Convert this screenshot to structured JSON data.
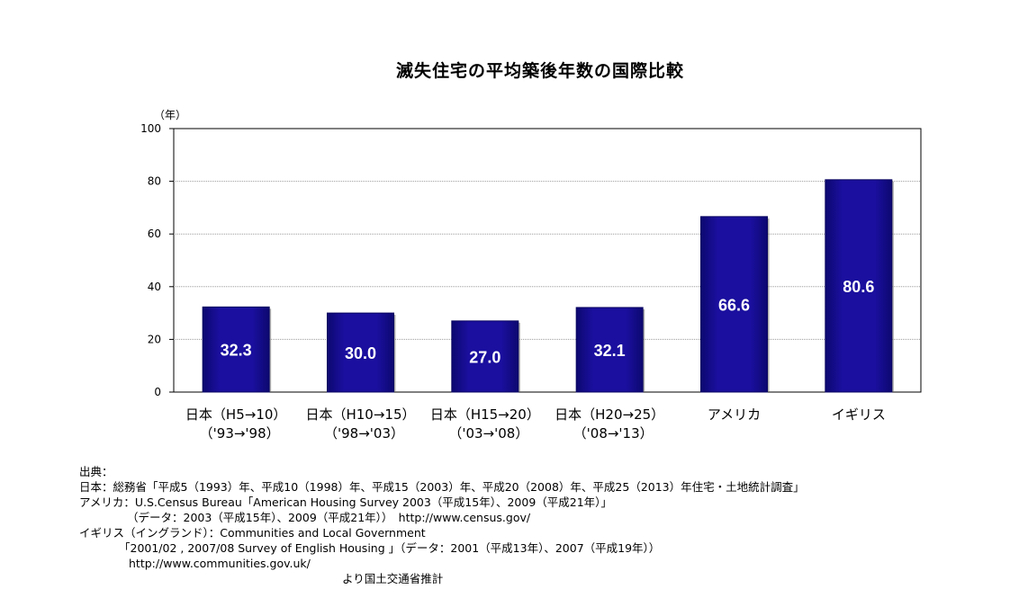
{
  "chart_data": {
    "type": "bar",
    "title": "滅失住宅の平均築後年数の国際比較",
    "yunit": "（年）",
    "ylim": [
      0,
      100
    ],
    "yticks": [
      0,
      20,
      40,
      60,
      80,
      100
    ],
    "grid": true,
    "categories": [
      {
        "label": "日本（H5→10）",
        "sublabel": "（'93→'98）"
      },
      {
        "label": "日本（H10→15）",
        "sublabel": "（'98→'03）"
      },
      {
        "label": "日本（H15→20）",
        "sublabel": "（'03→'08）"
      },
      {
        "label": "日本（H20→25）",
        "sublabel": "（'08→'13）"
      },
      {
        "label": "アメリカ",
        "sublabel": ""
      },
      {
        "label": "イギリス",
        "sublabel": ""
      }
    ],
    "values": [
      32.3,
      30.0,
      27.0,
      32.1,
      66.6,
      80.6
    ],
    "value_labels": [
      "32.3",
      "30.0",
      "27.0",
      "32.1",
      "66.6",
      "80.6"
    ],
    "colors": {
      "bar": "#1a0f9e",
      "bar_dark": "#0a0660",
      "label": "#ffffff",
      "grid": "#999999"
    }
  },
  "sources": {
    "heading": "出典：",
    "japan": "日本：総務省「平成5（1993）年、平成10（1998）年、平成15（2003）年、平成20（2008）年、平成25（2013）年住宅・土地統計調査」",
    "usa": "アメリカ：U.S.Census Bureau「American Housing Survey 2003（平成15年）、2009（平成21年）」",
    "usa_data": "（データ：2003（平成15年）、2009（平成21年））　http://www.census.gov/",
    "uk": "イギリス（イングランド）：Communities and Local Government",
    "uk_survey": "「2001/02 , 2007/08 Survey of English Housing 」（データ：2001（平成13年）、2007（平成19年））",
    "uk_url": "http://www.communities.gov.uk/",
    "estimate": "より国土交通省推計"
  }
}
